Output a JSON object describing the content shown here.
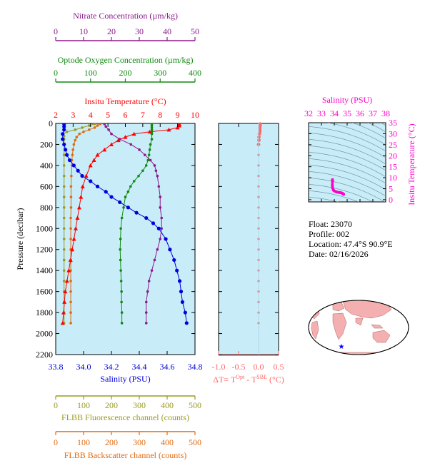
{
  "colors": {
    "nitrate": "#8b1a8b",
    "oxygen": "#128a12",
    "temperature": "#ff0000",
    "salinity": "#0000dd",
    "fluorescence": "#9a9a20",
    "backscatter": "#e06a10",
    "delta": "#ff6666",
    "ts": "#ff00cc",
    "panel_bg": "#c8ecf8"
  },
  "float_info": {
    "float": "Float:  23070",
    "profile": "Profile:  002",
    "location": "Location:  47.4°S  90.9°E",
    "date": "Date:  02/16/2026"
  },
  "chart_data": [
    {
      "type": "line",
      "name": "profile-panel",
      "ylabel": "Pressure (decibar)",
      "ylim": [
        2200,
        0
      ],
      "yticks": [
        0,
        200,
        400,
        600,
        800,
        1000,
        1200,
        1400,
        1600,
        1800,
        2000,
        2200
      ],
      "axes": {
        "nitrate": {
          "label": "Nitrate Concentration (µm/kg)",
          "range": [
            0,
            50
          ],
          "ticks": [
            0,
            10,
            20,
            30,
            40,
            50
          ]
        },
        "oxygen": {
          "label": "Optode Oxygen Concentration (µm/kg)",
          "range": [
            0,
            400
          ],
          "ticks": [
            0,
            100,
            200,
            300,
            400
          ]
        },
        "temperature": {
          "label": "Insitu Temperature (°C)",
          "range": [
            2,
            10
          ],
          "ticks": [
            2,
            3,
            4,
            5,
            6,
            7,
            8,
            9,
            10
          ]
        },
        "salinity": {
          "label": "Salinity (PSU)",
          "range": [
            33.8,
            34.8
          ],
          "ticks": [
            "33.8",
            "34.0",
            "34.2",
            "34.4",
            "34.6",
            "34.8"
          ]
        },
        "fluorescence": {
          "label": "FLBB Fluorescence channel (counts)",
          "range": [
            0,
            500
          ],
          "ticks": [
            0,
            100,
            200,
            300,
            400,
            500
          ]
        },
        "backscatter": {
          "label": "FLBB Backscatter channel (counts)",
          "range": [
            0,
            500
          ],
          "ticks": [
            0,
            100,
            200,
            300,
            400,
            500
          ]
        }
      },
      "series": {
        "temperature": {
          "p": [
            5,
            20,
            40,
            60,
            80,
            100,
            130,
            160,
            200,
            250,
            300,
            350,
            400,
            500,
            600,
            700,
            800,
            900,
            1000,
            1100,
            1200,
            1300,
            1400,
            1500,
            1600,
            1700,
            1800,
            1900
          ],
          "v": [
            9.1,
            9.1,
            9.0,
            8.5,
            7.4,
            6.5,
            6.0,
            5.6,
            5.2,
            4.8,
            4.4,
            4.2,
            4.0,
            3.75,
            3.55,
            3.45,
            3.35,
            3.25,
            3.15,
            3.05,
            2.95,
            2.85,
            2.75,
            2.65,
            2.55,
            2.5,
            2.45,
            2.4
          ]
        },
        "salinity": {
          "p": [
            5,
            30,
            60,
            100,
            150,
            200,
            250,
            300,
            350,
            400,
            450,
            500,
            550,
            600,
            650,
            700,
            750,
            800,
            850,
            900,
            950,
            1000,
            1100,
            1200,
            1300,
            1400,
            1500,
            1600,
            1700,
            1800,
            1900
          ],
          "v": [
            33.86,
            33.86,
            33.86,
            33.85,
            33.85,
            33.86,
            33.87,
            33.88,
            33.9,
            33.93,
            33.96,
            33.99,
            34.05,
            34.1,
            34.16,
            34.2,
            34.26,
            34.32,
            34.38,
            34.45,
            34.5,
            34.54,
            34.59,
            34.62,
            34.65,
            34.67,
            34.69,
            34.7,
            34.71,
            34.73,
            34.74
          ]
        },
        "oxygen": {
          "p": [
            5,
            20,
            40,
            60,
            80,
            100,
            150,
            200,
            250,
            300,
            350,
            400,
            450,
            500,
            550,
            600,
            650,
            700,
            800,
            900,
            1000,
            1100,
            1200,
            1300,
            1400,
            1500,
            1600,
            1700,
            1800,
            1900
          ],
          "v": [
            276,
            276,
            276,
            276,
            276,
            276,
            276,
            272,
            270,
            268,
            265,
            260,
            250,
            238,
            225,
            215,
            208,
            200,
            195,
            190,
            187,
            186,
            185,
            186,
            187,
            188,
            189,
            189,
            190,
            190
          ]
        },
        "nitrate": {
          "p": [
            5,
            30,
            60,
            100,
            150,
            200,
            250,
            300,
            350,
            400,
            450,
            500,
            600,
            700,
            800,
            900,
            1000,
            1100,
            1200,
            1300,
            1400,
            1500,
            1600,
            1700,
            1800,
            1900
          ],
          "v": [
            17.5,
            18,
            19,
            20,
            23,
            27,
            30,
            32,
            34,
            35.5,
            36,
            36.5,
            37,
            37.5,
            37.5,
            38,
            38,
            37.5,
            36.5,
            35.5,
            34.5,
            33.5,
            33,
            32.5,
            32.5,
            32.5
          ]
        },
        "fluorescence": {
          "p": [
            5,
            20,
            40,
            60,
            80,
            100,
            120,
            150,
            200,
            300,
            400,
            500,
            600,
            700,
            800,
            900,
            1000,
            1100,
            1200,
            1300,
            1400,
            1500,
            1600,
            1700,
            1800,
            1900
          ],
          "v": [
            140,
            120,
            95,
            70,
            40,
            25,
            30,
            30,
            30,
            30,
            30,
            30,
            30,
            30,
            30,
            30,
            30,
            30,
            30,
            30,
            30,
            30,
            30,
            30,
            30,
            30
          ]
        },
        "backscatter": {
          "p": [
            5,
            20,
            40,
            60,
            80,
            100,
            130,
            160,
            200,
            250,
            300,
            350,
            400,
            500,
            600,
            700,
            800,
            900,
            1000,
            1100,
            1200,
            1300,
            1400,
            1500,
            1600,
            1700,
            1800,
            1900
          ],
          "v": [
            160,
            150,
            140,
            120,
            100,
            85,
            75,
            70,
            65,
            62,
            60,
            58,
            58,
            56,
            55,
            55,
            55,
            54,
            54,
            54,
            54,
            54,
            54,
            54,
            54,
            54,
            54,
            54
          ]
        }
      }
    },
    {
      "type": "line",
      "name": "delta-t-panel",
      "xlabel": "ΔT= T",
      "xlabel_sup1": "Opt",
      "xlabel_mid": " - T",
      "xlabel_sup2": "SBE",
      "xlabel_end": " (°C)",
      "xlim": [
        -1.0,
        0.5
      ],
      "xticks": [
        "-1.0",
        "-0.5",
        "0.0",
        "0.5"
      ],
      "ylim": [
        2200,
        0
      ],
      "series": {
        "p": [
          5,
          20,
          40,
          60,
          80,
          100,
          130,
          160,
          200,
          300,
          400,
          500,
          600,
          700,
          800,
          900,
          1000,
          1100,
          1200,
          1300,
          1400,
          1500,
          1600,
          1700,
          1800,
          1900
        ],
        "v": [
          0.04,
          0.04,
          0.03,
          0.03,
          0.03,
          0.02,
          0.01,
          0.01,
          0.0,
          0.0,
          0.0,
          0.0,
          0.0,
          0.0,
          0.0,
          0.0,
          0.0,
          0.0,
          0.0,
          0.0,
          0.0,
          0.0,
          0.0,
          0.0,
          0.0,
          0.0
        ]
      }
    },
    {
      "type": "scatter",
      "name": "ts-diagram",
      "xlabel": "Salinity (PSU)",
      "ylabel": "Insitu Temperature (°C)",
      "xlim": [
        32,
        38
      ],
      "ylim": [
        -1,
        35
      ],
      "xticks": [
        32,
        33,
        34,
        35,
        36,
        37,
        38
      ],
      "yticks": [
        0,
        5,
        10,
        15,
        20,
        25,
        30,
        35
      ],
      "points": {
        "s": [
          33.86,
          33.86,
          33.85,
          33.86,
          33.88,
          33.93,
          33.99,
          34.1,
          34.2,
          34.32,
          34.45,
          34.54,
          34.62,
          34.67,
          34.7,
          34.73
        ],
        "t": [
          9.1,
          8.5,
          6.5,
          5.6,
          5.2,
          4.4,
          4.0,
          3.75,
          3.45,
          3.35,
          3.25,
          3.15,
          2.95,
          2.75,
          2.55,
          2.45
        ]
      }
    }
  ],
  "map": {
    "marker": "float-location-star"
  }
}
